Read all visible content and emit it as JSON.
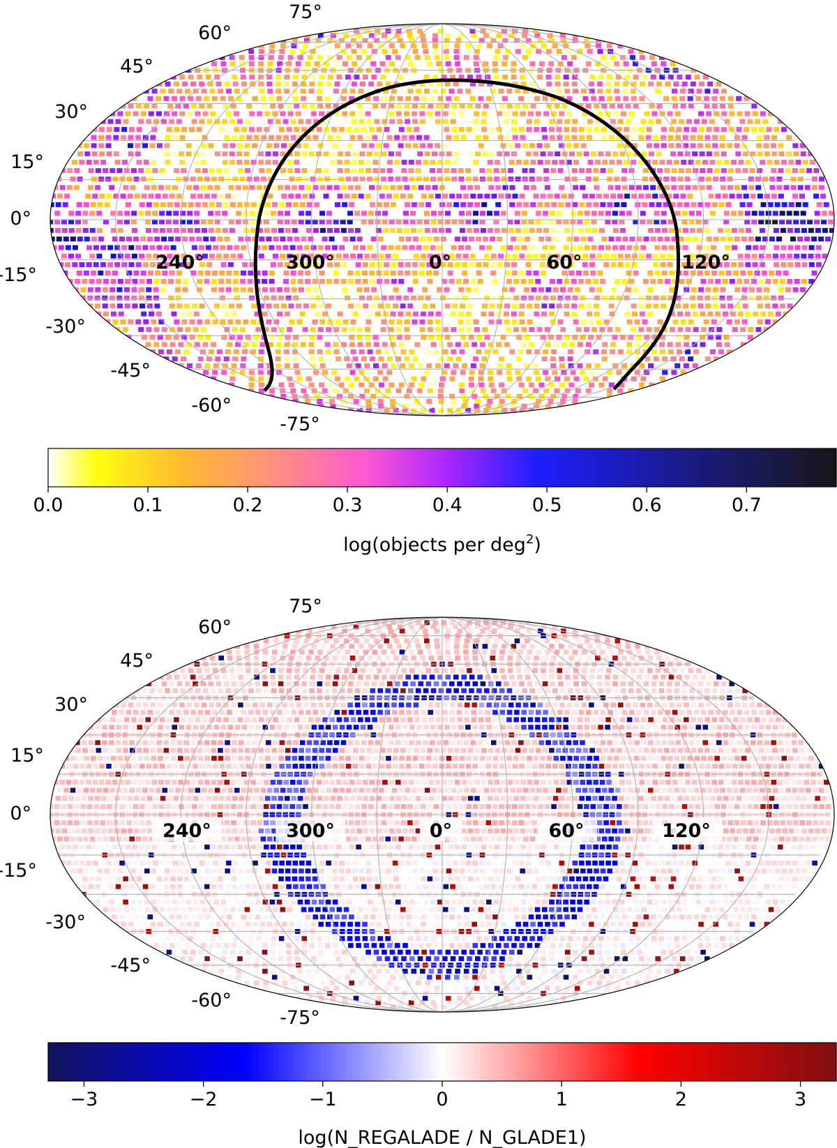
{
  "chart_data": [
    {
      "type": "heatmap",
      "projection": "mollweide",
      "title": "",
      "lat_tick_labels": [
        "75°",
        "60°",
        "45°",
        "30°",
        "15°",
        "0°",
        "-15°",
        "-30°",
        "-45°",
        "-60°",
        "-75°"
      ],
      "lat_ticks": [
        75,
        60,
        45,
        30,
        15,
        0,
        -15,
        -30,
        -45,
        -60,
        -75
      ],
      "lon_tick_labels": [
        "240°",
        "300°",
        "0°",
        "60°",
        "120°"
      ],
      "lon_ticks": [
        240,
        300,
        0,
        60,
        120
      ],
      "grid": true,
      "overlay_curve": "black boundary curve, symmetric about lon 0",
      "colorbar": {
        "colormap": "gnuplot2_r",
        "colors": [
          "#ffffff",
          "#ffff00",
          "#ffb52e",
          "#ff8c8c",
          "#ff4fd4",
          "#a020ff",
          "#1a1aff",
          "#10107a",
          "#1a1a1a"
        ],
        "range": [
          0.0,
          0.79
        ],
        "tick_values": [
          0.0,
          0.1,
          0.2,
          0.3,
          0.4,
          0.5,
          0.6,
          0.7
        ],
        "tick_labels": [
          "0.0",
          "0.1",
          "0.2",
          "0.3",
          "0.4",
          "0.5",
          "0.6",
          "0.7"
        ],
        "label_main": "log(objects per deg",
        "label_sup": "2",
        "label_tail": ")"
      }
    },
    {
      "type": "heatmap",
      "projection": "mollweide",
      "title": "",
      "lat_tick_labels": [
        "75°",
        "60°",
        "45°",
        "30°",
        "15°",
        "0°",
        "-15°",
        "-30°",
        "-45°",
        "-60°",
        "-75°"
      ],
      "lat_ticks": [
        75,
        60,
        45,
        30,
        15,
        0,
        -15,
        -30,
        -45,
        -60,
        -75
      ],
      "lon_tick_labels": [
        "240°",
        "300°",
        "0°",
        "60°",
        "120°"
      ],
      "lon_ticks": [
        240,
        300,
        0,
        60,
        120
      ],
      "grid": true,
      "colorbar": {
        "colormap": "seismic",
        "colors": [
          "#13135c",
          "#0000ff",
          "#ffffff",
          "#ff0000",
          "#7f1010"
        ],
        "range": [
          -3.3,
          3.3
        ],
        "tick_values": [
          -3,
          -2,
          -1,
          0,
          1,
          2,
          3
        ],
        "tick_labels": [
          "−3",
          "−2",
          "−1",
          "0",
          "1",
          "2",
          "3"
        ],
        "label_main": "log(N_REGALADE / N_GLADE1)"
      }
    }
  ]
}
